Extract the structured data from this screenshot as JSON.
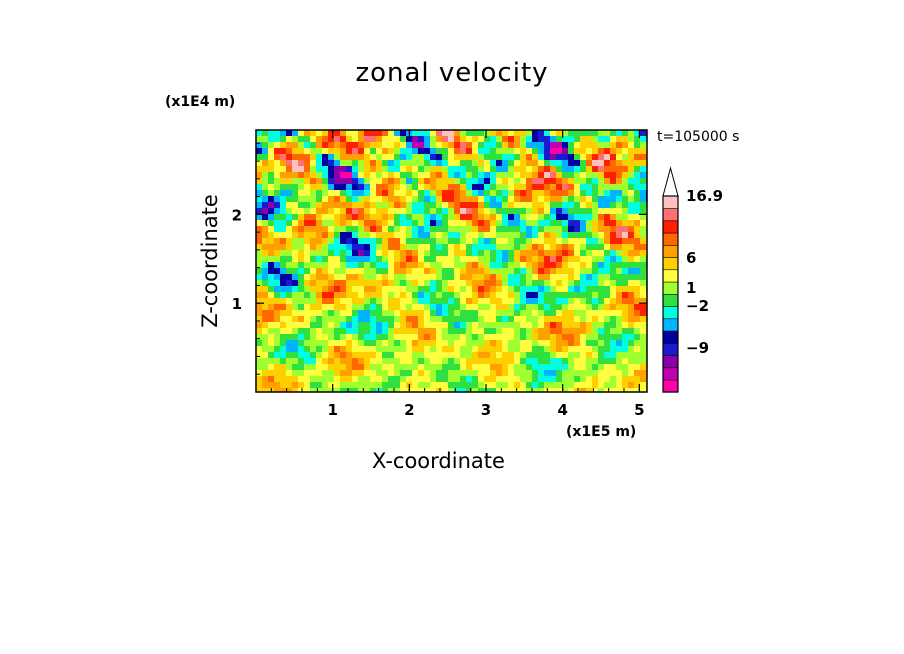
{
  "chart_data": {
    "type": "heatmap",
    "title": "zonal velocity",
    "xlabel": "X-coordinate",
    "ylabel": "Z-coordinate",
    "x_unit": "(x1E5 m)",
    "y_unit": "(x1E4 m)",
    "annotation": "t=105000 s",
    "xlim": [
      0,
      5.1
    ],
    "ylim": [
      0,
      2.95
    ],
    "x_ticks": [
      "1",
      "2",
      "3",
      "4",
      "5"
    ],
    "y_ticks": [
      "1",
      "2"
    ],
    "colorbar": {
      "labels": [
        "16.9",
        "6",
        "1",
        "−2",
        "−9"
      ],
      "colors": [
        "#ff00a8",
        "#c000b0",
        "#8a00a8",
        "#1a1ad0",
        "#0000a0",
        "#00b4ff",
        "#00ffe0",
        "#30e040",
        "#a0ff30",
        "#ffff40",
        "#ffd000",
        "#ffa000",
        "#ff6800",
        "#ff2000",
        "#ff7070",
        "#ffc0c0"
      ]
    }
  }
}
